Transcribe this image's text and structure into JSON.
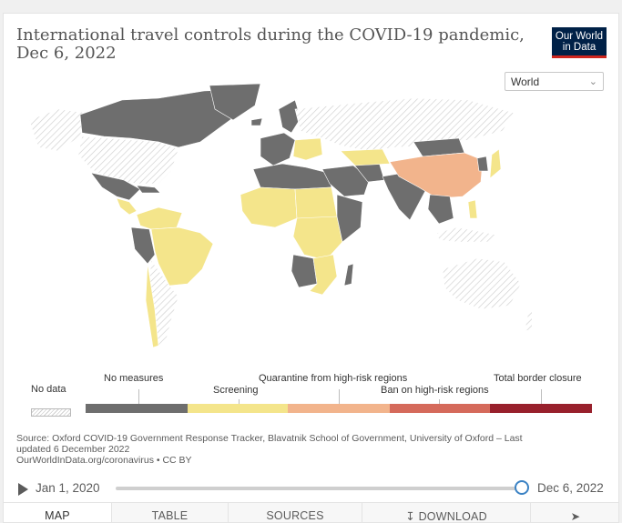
{
  "header": {
    "title": "International travel controls during the COVID-19 pandemic, Dec 6, 2022",
    "logo_line1": "Our World",
    "logo_line2": "in Data"
  },
  "entity_selector": {
    "value": "World"
  },
  "legend": {
    "no_data": "No data",
    "categories": [
      {
        "label": "No measures",
        "color": "#6e6e6e"
      },
      {
        "label": "Screening",
        "color": "#f4e58b"
      },
      {
        "label": "Quarantine from high-risk regions",
        "color": "#f2b48c"
      },
      {
        "label": "Ban on high-risk regions",
        "color": "#d56a5b"
      },
      {
        "label": "Total border closure",
        "color": "#98202c"
      }
    ]
  },
  "source": {
    "line1": "Source: Oxford COVID-19 Government Response Tracker, Blavatnik School of Government, University of Oxford – Last",
    "line2": "updated 6 December 2022",
    "line3": "OurWorldInData.org/coronavirus • CC BY"
  },
  "timeline": {
    "start_label": "Jan 1, 2020",
    "end_label": "Dec 6, 2022",
    "position_fraction": 1.0
  },
  "tabs": [
    {
      "label": "MAP",
      "active": true
    },
    {
      "label": "TABLE",
      "active": false
    },
    {
      "label": "SOURCES",
      "active": false
    },
    {
      "label": "DOWNLOAD",
      "active": false
    },
    {
      "label": "",
      "active": false
    }
  ],
  "icons": {
    "play": "play-icon",
    "download": "download-icon",
    "share": "share-icon",
    "chevron": "chevron-down-icon"
  }
}
